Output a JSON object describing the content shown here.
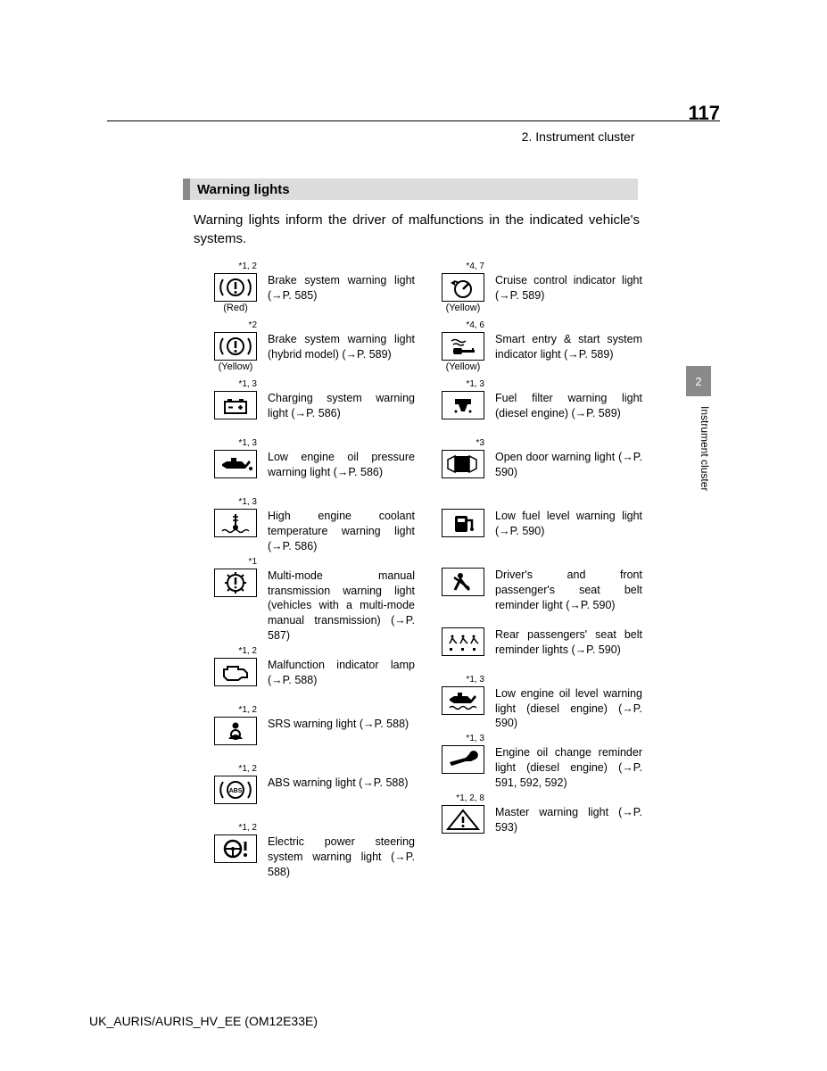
{
  "header": {
    "section": "2. Instrument cluster",
    "page": "117"
  },
  "section_title": "Warning lights",
  "intro": "Warning lights inform the driver of malfunctions in the indicated vehicle's systems.",
  "side_tab": "2",
  "side_label": "Instrument cluster",
  "footer": "UK_AURIS/AURIS_HV_EE (OM12E33E)",
  "left": [
    {
      "sup": "*1, 2",
      "sub": "(Red)",
      "icon": "brake",
      "desc": "Brake system warning light (→P. 585)"
    },
    {
      "sup": "*2",
      "sub": "(Yellow)",
      "icon": "brake",
      "desc": "Brake system warning light (hybrid model) (→P. 589)"
    },
    {
      "sup": "*1, 3",
      "sub": "",
      "icon": "battery",
      "desc": "Charging system warning light (→P. 586)"
    },
    {
      "sup": "*1, 3",
      "sub": "",
      "icon": "oilcan",
      "desc": "Low engine oil pressure warning light (→P. 586)"
    },
    {
      "sup": "*1, 3",
      "sub": "",
      "icon": "temp",
      "desc": "High engine coolant temperature warning light (→P. 586)"
    },
    {
      "sup": "*1",
      "sub": "",
      "icon": "gear",
      "desc": "Multi-mode manual transmission warning light (vehicles with a multi-mode manual transmission) (→P. 587)"
    },
    {
      "sup": "*1, 2",
      "sub": "",
      "icon": "engine",
      "desc": "Malfunction indicator lamp (→P. 588)"
    },
    {
      "sup": "*1, 2",
      "sub": "",
      "icon": "airbag",
      "desc": "SRS warning light (→P. 588)"
    },
    {
      "sup": "*1, 2",
      "sub": "",
      "icon": "abs",
      "desc": "ABS warning light (→P. 588)"
    },
    {
      "sup": "*1, 2",
      "sub": "",
      "icon": "steer",
      "desc": "Electric power steering system warning light (→P. 588)"
    }
  ],
  "right": [
    {
      "sup": "*4, 7",
      "sub": "(Yellow)",
      "icon": "cruise",
      "desc": "Cruise control indicator light (→P. 589)"
    },
    {
      "sup": "*4, 6",
      "sub": "(Yellow)",
      "icon": "key",
      "desc": "Smart entry & start system indicator light (→P. 589)"
    },
    {
      "sup": "*1, 3",
      "sub": "",
      "icon": "fuelfilt",
      "desc": "Fuel filter warning light (diesel engine) (→P. 589)"
    },
    {
      "sup": "*3",
      "sub": "",
      "icon": "door",
      "desc": "Open door warning light (→P. 590)"
    },
    {
      "sup": "",
      "sub": "",
      "icon": "fuel",
      "desc": "Low fuel level warning light (→P. 590)"
    },
    {
      "sup": "",
      "sub": "",
      "icon": "seat",
      "desc": "Driver's and front passenger's seat belt reminder light (→P. 590)"
    },
    {
      "sup": "",
      "sub": "",
      "icon": "seat3",
      "desc": "Rear passengers' seat belt reminder lights (→P. 590)"
    },
    {
      "sup": "*1, 3",
      "sub": "",
      "icon": "oilwave",
      "desc": "Low engine oil level warning light (diesel engine) (→P. 590)"
    },
    {
      "sup": "*1, 3",
      "sub": "",
      "icon": "wrench",
      "desc": "Engine oil change reminder light (diesel engine) (→P. 591, 592, 592)"
    },
    {
      "sup": "*1, 2, 8",
      "sub": "",
      "icon": "master",
      "desc": "Master warning light (→P. 593)"
    }
  ]
}
